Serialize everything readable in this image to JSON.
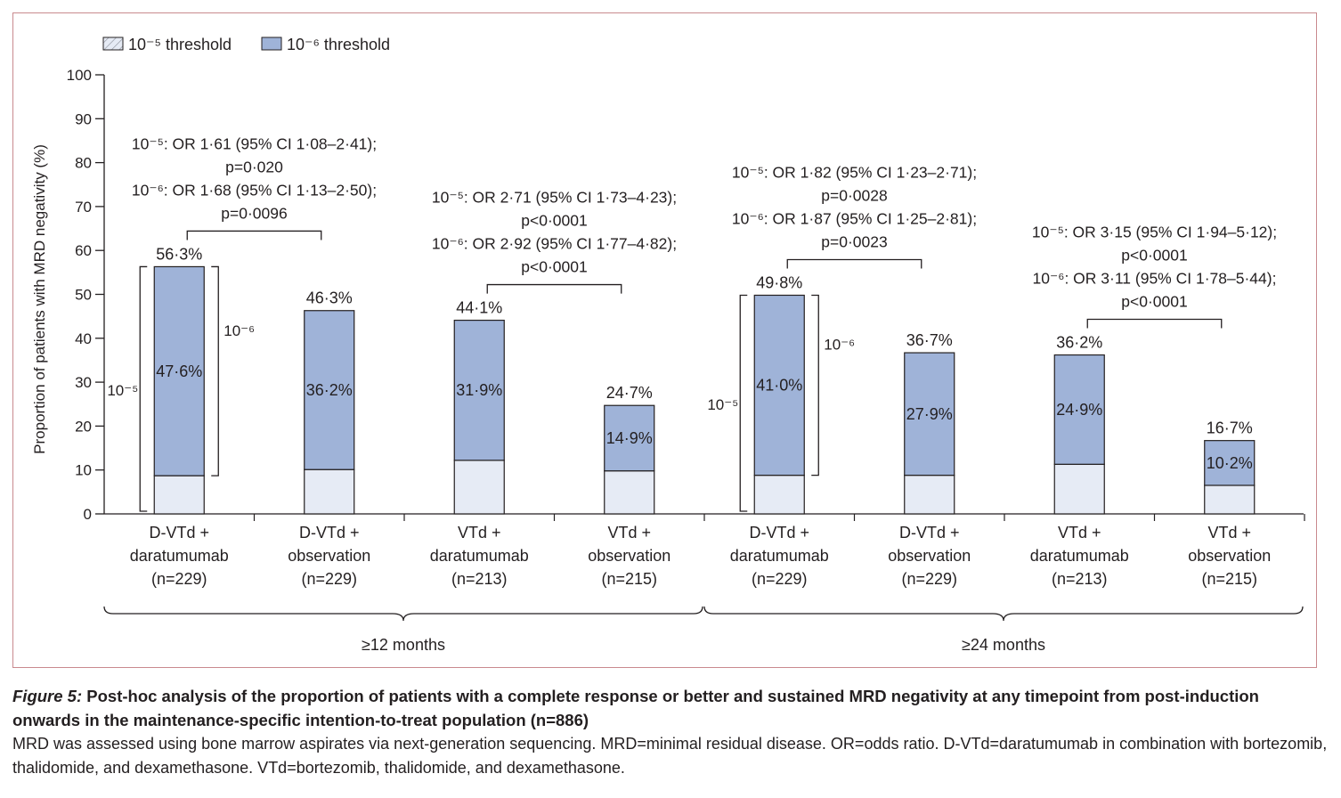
{
  "chart_data": {
    "type": "bar",
    "stacked": true,
    "ylabel": "Proportion of patients with MRD negativity (%)",
    "ylim": [
      0,
      100
    ],
    "yticks": [
      "0",
      "10",
      "20",
      "30",
      "40",
      "50",
      "60",
      "70",
      "80",
      "90",
      "100"
    ],
    "legend": {
      "placement": "top-left",
      "items": [
        {
          "label": "10⁻⁵ threshold",
          "color": "#e6ebf5",
          "pattern": "hatch"
        },
        {
          "label": "10⁻⁶ threshold",
          "color": "#9fb3d8"
        }
      ]
    },
    "categories": [
      {
        "line1": "D-VTd +",
        "line2": "daratumumab",
        "line3": "(n=229)"
      },
      {
        "line1": "D-VTd +",
        "line2": "observation",
        "line3": "(n=229)"
      },
      {
        "line1": "VTd +",
        "line2": "daratumumab",
        "line3": "(n=213)"
      },
      {
        "line1": "VTd +",
        "line2": "observation",
        "line3": "(n=215)"
      },
      {
        "line1": "D-VTd +",
        "line2": "daratumumab",
        "line3": "(n=229)"
      },
      {
        "line1": "D-VTd +",
        "line2": "observation",
        "line3": "(n=229)"
      },
      {
        "line1": "VTd +",
        "line2": "daratumumab",
        "line3": "(n=213)"
      },
      {
        "line1": "VTd +",
        "line2": "observation",
        "line3": "(n=215)"
      }
    ],
    "threshold_1e5_total": [
      56.3,
      46.3,
      44.1,
      24.7,
      49.8,
      36.7,
      36.2,
      16.7
    ],
    "threshold_1e6": [
      47.6,
      36.2,
      31.9,
      14.9,
      41.0,
      27.9,
      24.9,
      10.2
    ],
    "top_labels": [
      "56·3%",
      "46·3%",
      "44·1%",
      "24·7%",
      "49·8%",
      "36·7%",
      "36·2%",
      "16·7%"
    ],
    "inner_labels": [
      "47·6%",
      "36·2%",
      "31·9%",
      "14·9%",
      "41·0%",
      "27·9%",
      "24·9%",
      "10·2%"
    ],
    "groups": [
      {
        "label": "≥12 months",
        "bars": [
          0,
          1,
          2,
          3
        ]
      },
      {
        "label": "≥24 months",
        "bars": [
          4,
          5,
          6,
          7
        ]
      }
    ],
    "bracket_labels": {
      "e5": "10⁻⁵",
      "e6": "10⁻⁶"
    },
    "comparisons": [
      {
        "bars": [
          0,
          1
        ],
        "lines": [
          "10⁻⁵: OR 1·61 (95% CI 1·08–2·41);",
          "p=0·020",
          "10⁻⁶: OR 1·68 (95% CI 1·13–2·50);",
          "p=0·0096"
        ]
      },
      {
        "bars": [
          2,
          3
        ],
        "lines": [
          "10⁻⁵: OR 2·71 (95% CI 1·73–4·23);",
          "p<0·0001",
          "10⁻⁶: OR 2·92 (95% CI 1·77–4·82);",
          "p<0·0001"
        ]
      },
      {
        "bars": [
          4,
          5
        ],
        "lines": [
          "10⁻⁵: OR 1·82 (95% CI 1·23–2·71);",
          "p=0·0028",
          "10⁻⁶: OR 1·87 (95% CI 1·25–2·81);",
          "p=0·0023"
        ]
      },
      {
        "bars": [
          6,
          7
        ],
        "lines": [
          "10⁻⁵: OR 3·15 (95% CI 1·94–5·12);",
          "p<0·0001",
          "10⁻⁶: OR 3·11 (95% CI 1·78–5·44);",
          "p<0·0001"
        ]
      }
    ]
  },
  "caption": {
    "label": "Figure 5:",
    "title": " Post-hoc analysis of the proportion of patients with a complete response or better and sustained MRD negativity at any timepoint from post-induction onwards in the maintenance-specific intention-to-treat population (n=886)",
    "note": "MRD was assessed using bone marrow aspirates via next-generation sequencing. MRD=minimal residual disease. OR=odds ratio. D-VTd=daratumumab in combination with bortezomib, thalidomide, and dexamethasone. VTd=bortezomib, thalidomide, and dexamethasone."
  }
}
